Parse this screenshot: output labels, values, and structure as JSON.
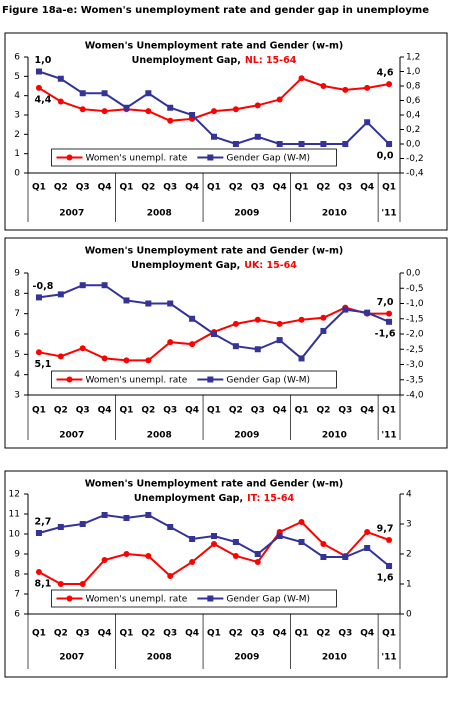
{
  "figure_title": "Figure 18a-e: Women's unemployment rate and gender gap in unemployme",
  "chart_data": [
    {
      "type": "line",
      "title": "Women's Unemployment rate and Gender (w-m)",
      "subtitle": "Unemployment Gap,",
      "subtitle_region": "NL: 15-64",
      "categories": [
        "Q1",
        "Q2",
        "Q3",
        "Q4",
        "Q1",
        "Q2",
        "Q3",
        "Q4",
        "Q1",
        "Q2",
        "Q3",
        "Q4",
        "Q1",
        "Q2",
        "Q3",
        "Q4",
        "Q1"
      ],
      "year_labels": [
        "2007",
        "2008",
        "2009",
        "2010",
        "'11"
      ],
      "series": [
        {
          "name": "Women's unempl. rate",
          "color": "#ff0000",
          "values": [
            4.4,
            3.7,
            3.3,
            3.2,
            3.3,
            3.2,
            2.7,
            2.8,
            3.2,
            3.3,
            3.5,
            3.8,
            4.9,
            4.5,
            4.3,
            4.4,
            4.6
          ],
          "value_labels": [
            "4,4",
            null,
            null,
            null,
            null,
            null,
            null,
            null,
            null,
            null,
            null,
            null,
            null,
            null,
            null,
            null,
            "4,6"
          ]
        },
        {
          "name": "Gender Gap (W-M)",
          "color": "#333399",
          "axis": "y2",
          "values": [
            1.0,
            0.9,
            0.7,
            0.7,
            0.5,
            0.7,
            0.5,
            0.4,
            0.1,
            0.0,
            0.1,
            0.0,
            0.0,
            0.0,
            0.0,
            0.3,
            0.0
          ],
          "value_labels": [
            "1,0",
            null,
            null,
            null,
            null,
            null,
            null,
            null,
            null,
            null,
            null,
            null,
            null,
            null,
            null,
            null,
            "0,0"
          ]
        }
      ],
      "ylim": [
        0,
        6
      ],
      "yticks": [
        0,
        1,
        2,
        3,
        4,
        5,
        6
      ],
      "y2lim": [
        -0.4,
        1.2
      ],
      "y2ticks": [
        {
          "value": -0.4,
          "label": "-0,4"
        },
        {
          "value": -0.2,
          "label": "-0,2"
        },
        {
          "value": 0,
          "label": "0,0"
        },
        {
          "value": 0.2,
          "label": "0,2"
        },
        {
          "value": 0.4,
          "label": "0,4"
        },
        {
          "value": 0.6,
          "label": "0,6"
        },
        {
          "value": 0.8,
          "label": "0,8"
        },
        {
          "value": 1.0,
          "label": "1,0"
        },
        {
          "value": 1.2,
          "label": "1,2"
        }
      ],
      "legend": "lower center",
      "grid": false
    },
    {
      "type": "line",
      "title": "Women's Unemployment rate and Gender (w-m)",
      "subtitle": "Unemployment Gap,",
      "subtitle_region": "UK: 15-64",
      "categories": [
        "Q1",
        "Q2",
        "Q3",
        "Q4",
        "Q1",
        "Q2",
        "Q3",
        "Q4",
        "Q1",
        "Q2",
        "Q3",
        "Q4",
        "Q1",
        "Q2",
        "Q3",
        "Q4",
        "Q1"
      ],
      "year_labels": [
        "2007",
        "2008",
        "2009",
        "2010",
        "'11"
      ],
      "series": [
        {
          "name": "Women's unempl. rate",
          "color": "#ff0000",
          "values": [
            5.1,
            4.9,
            5.3,
            4.8,
            4.7,
            4.7,
            5.6,
            5.5,
            6.1,
            6.5,
            6.7,
            6.5,
            6.7,
            6.8,
            7.3,
            7.0,
            7.0
          ],
          "value_labels": [
            "5,1",
            null,
            null,
            null,
            null,
            null,
            null,
            null,
            null,
            null,
            null,
            null,
            null,
            null,
            null,
            null,
            "7,0"
          ]
        },
        {
          "name": "Gender Gap (W-M)",
          "color": "#333399",
          "axis": "y2",
          "values": [
            -0.8,
            -0.7,
            -0.4,
            -0.4,
            -0.9,
            -1.0,
            -1.0,
            -1.5,
            -2.0,
            -2.4,
            -2.5,
            -2.2,
            -2.8,
            -1.9,
            -1.2,
            -1.3,
            -1.6
          ],
          "value_labels": [
            "-0,8",
            null,
            null,
            null,
            null,
            null,
            null,
            null,
            null,
            null,
            null,
            null,
            null,
            null,
            null,
            null,
            "-1,6"
          ]
        }
      ],
      "ylim": [
        3,
        9
      ],
      "yticks": [
        3,
        4,
        5,
        6,
        7,
        8,
        9
      ],
      "y2lim": [
        -4,
        0
      ],
      "y2ticks": [
        {
          "value": -4,
          "label": "-4,0"
        },
        {
          "value": -3.5,
          "label": "-3,5"
        },
        {
          "value": -3,
          "label": "-3,0"
        },
        {
          "value": -2.5,
          "label": "-2,5"
        },
        {
          "value": -2,
          "label": "-2,0"
        },
        {
          "value": -1.5,
          "label": "-1,5"
        },
        {
          "value": -1,
          "label": "-1,0"
        },
        {
          "value": -0.5,
          "label": "-0,5"
        },
        {
          "value": 0,
          "label": "0,0"
        }
      ],
      "legend": "lower center",
      "grid": false
    },
    {
      "type": "line",
      "title": "Women's Unemployment rate and Gender (w-m)",
      "subtitle": "Unemployment Gap,",
      "subtitle_region": "IT: 15-64",
      "categories": [
        "Q1",
        "Q2",
        "Q3",
        "Q4",
        "Q1",
        "Q2",
        "Q3",
        "Q4",
        "Q1",
        "Q2",
        "Q3",
        "Q4",
        "Q1",
        "Q2",
        "Q3",
        "Q4",
        "Q1"
      ],
      "year_labels": [
        "2007",
        "2008",
        "2009",
        "2010",
        "'11"
      ],
      "series": [
        {
          "name": "Women's unempl. rate",
          "color": "#ff0000",
          "values": [
            8.1,
            7.5,
            7.5,
            8.7,
            9.0,
            8.9,
            7.9,
            8.6,
            9.5,
            8.9,
            8.6,
            10.1,
            10.6,
            9.5,
            8.9,
            10.1,
            9.7
          ],
          "value_labels": [
            "8,1",
            null,
            null,
            null,
            null,
            null,
            null,
            null,
            null,
            null,
            null,
            null,
            null,
            null,
            null,
            null,
            "9,7"
          ]
        },
        {
          "name": "Gender Gap (W-M)",
          "color": "#333399",
          "axis": "y2",
          "values": [
            2.7,
            2.9,
            3.0,
            3.3,
            3.2,
            3.3,
            2.9,
            2.5,
            2.6,
            2.4,
            2.0,
            2.6,
            2.4,
            1.9,
            1.9,
            2.2,
            1.6
          ],
          "value_labels": [
            "2,7",
            null,
            null,
            null,
            null,
            null,
            null,
            null,
            null,
            null,
            null,
            null,
            null,
            null,
            null,
            null,
            "1,6"
          ]
        }
      ],
      "ylim": [
        6,
        12
      ],
      "yticks": [
        6,
        7,
        8,
        9,
        10,
        11,
        12
      ],
      "y2lim": [
        0,
        4
      ],
      "y2ticks": [
        0,
        1,
        2,
        3,
        4
      ],
      "legend": "lower center",
      "grid": false
    }
  ]
}
